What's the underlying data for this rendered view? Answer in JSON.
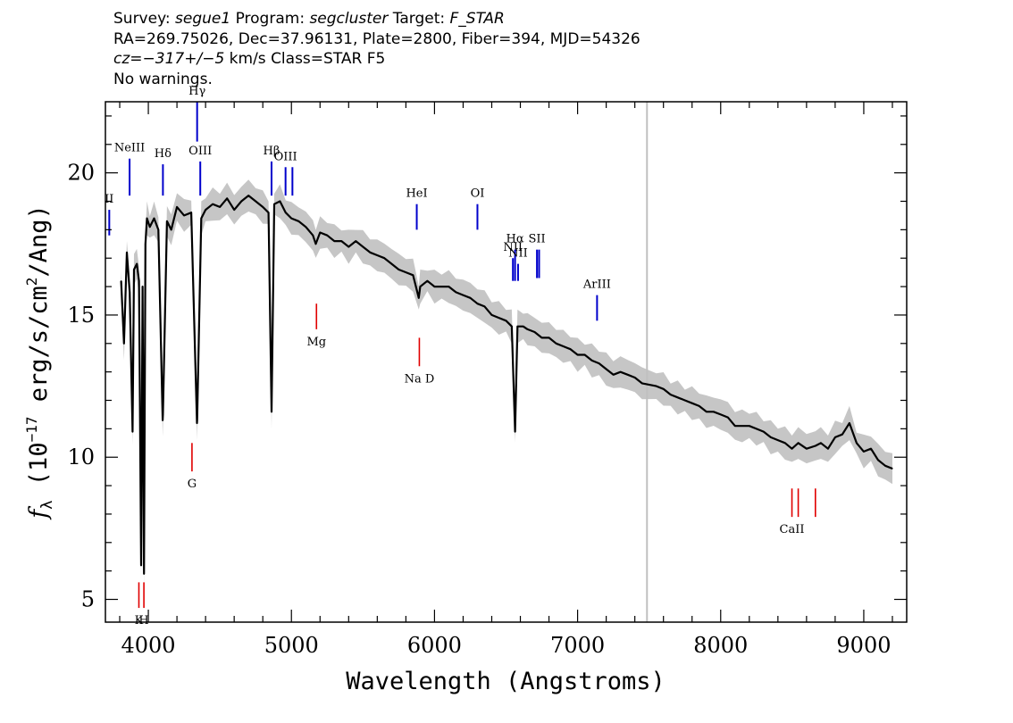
{
  "header": {
    "line1": {
      "survey_label": "Survey: ",
      "survey": "segue1",
      "program_label": " Program: ",
      "program": "segcluster",
      "target_label": " Target: ",
      "target": "F_STAR"
    },
    "line2": "RA=269.75026, Dec=37.96131, Plate=2800, Fiber=394, MJD=54326",
    "line3": {
      "cz": "cz",
      "eq": "=",
      "cz_value": "−317+/−5",
      "units": " km/s Class=STAR F5"
    },
    "line4": "No warnings."
  },
  "chart_data": {
    "type": "line",
    "xlabel": "Wavelength (Angstroms)",
    "ylabel": {
      "f": "f",
      "sub": "λ",
      "rest": " (10",
      "exp": "−17",
      "units": " erg/s/cm",
      "exp2": "2",
      "tail": "/Ang)"
    },
    "xlim": [
      3700,
      9300
    ],
    "ylim": [
      4.2,
      22.5
    ],
    "xticks": [
      4000,
      5000,
      6000,
      7000,
      8000,
      9000
    ],
    "yticks": [
      5,
      10,
      15,
      20
    ],
    "grid": false,
    "colors": {
      "flux": "#000000",
      "error": "#c0c0c0",
      "emission": "#0000cc",
      "absorption": "#e00000",
      "gap": "#c0c0c0"
    },
    "gap_x": 7485,
    "series": [
      {
        "values_note_skip": false,
        "x": [
          3810,
          3830,
          3850,
          3870,
          3890,
          3900,
          3920,
          3935,
          3950,
          3960,
          3970,
          3980,
          3990,
          4010,
          4040,
          4070,
          4100,
          4102,
          4130,
          4160,
          4200,
          4250,
          4300,
          4340,
          4341,
          4370,
          4400,
          4450,
          4500,
          4550,
          4600,
          4650,
          4700,
          4750,
          4800,
          4840,
          4861,
          4880,
          4920,
          4960,
          5000,
          5050,
          5100,
          5150,
          5170,
          5200,
          5250,
          5300,
          5350,
          5400,
          5450,
          5500,
          5550,
          5600,
          5650,
          5700,
          5750,
          5800,
          5850,
          5890,
          5900,
          5950,
          6000,
          6050,
          6100,
          6150,
          6200,
          6250,
          6300,
          6350,
          6400,
          6450,
          6500,
          6540,
          6563,
          6580,
          6620,
          6650,
          6700,
          6750,
          6800,
          6850,
          6900,
          6950,
          7000,
          7050,
          7100,
          7150,
          7200,
          7250,
          7300,
          7350,
          7400,
          7450,
          7550,
          7600,
          7650,
          7700,
          7750,
          7800,
          7850,
          7900,
          7950,
          8000,
          8050,
          8100,
          8150,
          8200,
          8250,
          8300,
          8350,
          8400,
          8450,
          8498,
          8542,
          8600,
          8662,
          8700,
          8750,
          8800,
          8850,
          8900,
          8950,
          9000,
          9050,
          9100,
          9150,
          9200
        ],
        "values": [
          16.2,
          14.0,
          17.2,
          15.8,
          10.9,
          16.6,
          16.8,
          16.2,
          6.2,
          16.0,
          5.9,
          17.5,
          18.4,
          18.1,
          18.4,
          18.0,
          11.3,
          11.5,
          18.3,
          18.0,
          18.8,
          18.5,
          18.6,
          11.2,
          11.3,
          18.4,
          18.7,
          18.9,
          18.8,
          19.1,
          18.7,
          19.0,
          19.2,
          19.0,
          18.8,
          18.6,
          11.6,
          18.9,
          19.0,
          18.6,
          18.4,
          18.3,
          18.1,
          17.8,
          17.5,
          17.9,
          17.8,
          17.6,
          17.6,
          17.4,
          17.6,
          17.4,
          17.2,
          17.1,
          17.0,
          16.8,
          16.6,
          16.5,
          16.4,
          15.6,
          16.0,
          16.2,
          16.0,
          16.0,
          16.0,
          15.8,
          15.7,
          15.6,
          15.4,
          15.3,
          15.0,
          14.9,
          14.8,
          14.6,
          10.9,
          14.6,
          14.6,
          14.5,
          14.4,
          14.2,
          14.2,
          14.0,
          13.9,
          13.8,
          13.6,
          13.6,
          13.4,
          13.3,
          13.1,
          12.9,
          13.0,
          12.9,
          12.8,
          12.6,
          12.5,
          12.4,
          12.2,
          12.1,
          12.0,
          11.9,
          11.8,
          11.6,
          11.6,
          11.5,
          11.4,
          11.1,
          11.1,
          11.1,
          11.0,
          10.9,
          10.7,
          10.6,
          10.5,
          10.3,
          10.5,
          10.3,
          10.4,
          10.5,
          10.3,
          10.7,
          10.8,
          11.2,
          10.5,
          10.2,
          10.3,
          9.9,
          9.7,
          9.6
        ]
      }
    ],
    "emission_lines": [
      {
        "label": "NeIII",
        "x": 3869,
        "y_bottom": 19.2,
        "y_top": 20.5
      },
      {
        "label": "Hδ",
        "x": 4102,
        "y_bottom": 19.2,
        "y_top": 20.3
      },
      {
        "label": "Hγ",
        "x": 4341,
        "y_bottom": 21.1,
        "y_top": 22.5
      },
      {
        "label": "OIII",
        "x": 4363,
        "y_bottom": 19.2,
        "y_top": 20.4
      },
      {
        "label": "Hβ",
        "x": 4861,
        "y_bottom": 19.2,
        "y_top": 20.4
      },
      {
        "label": "OIII",
        "x": 4959,
        "y_bottom": 19.2,
        "y_top": 20.2
      },
      {
        "label": "",
        "x": 5007,
        "y_bottom": 19.2,
        "y_top": 20.2
      },
      {
        "label": "HeI",
        "x": 5876,
        "y_bottom": 18.0,
        "y_top": 18.9
      },
      {
        "label": "OI",
        "x": 6300,
        "y_bottom": 18.0,
        "y_top": 18.9
      },
      {
        "label": "NII",
        "x": 6548,
        "y_bottom": 16.2,
        "y_top": 17.0
      },
      {
        "label": "Hα",
        "x": 6563,
        "y_bottom": 16.2,
        "y_top": 17.3
      },
      {
        "label": "NII",
        "x": 6584,
        "y_bottom": 16.2,
        "y_top": 16.8
      },
      {
        "label": "SII",
        "x": 6716,
        "y_bottom": 16.3,
        "y_top": 17.3
      },
      {
        "label": "",
        "x": 6731,
        "y_bottom": 16.3,
        "y_top": 17.3
      },
      {
        "label": "ArIII",
        "x": 7136,
        "y_bottom": 14.8,
        "y_top": 15.7
      },
      {
        "label": "II",
        "x": 3727,
        "y_bottom": 17.8,
        "y_top": 18.7
      }
    ],
    "absorption_lines": [
      {
        "label": "K",
        "x": 3934,
        "y_bottom": 4.7,
        "y_top": 5.6
      },
      {
        "label": "H",
        "x": 3969,
        "y_bottom": 4.7,
        "y_top": 5.6
      },
      {
        "label": "G",
        "x": 4305,
        "y_bottom": 9.5,
        "y_top": 10.5
      },
      {
        "label": "Mg",
        "x": 5175,
        "y_bottom": 14.5,
        "y_top": 15.4
      },
      {
        "label": "Na D",
        "x": 5894,
        "y_bottom": 13.2,
        "y_top": 14.2
      },
      {
        "label": "CaII",
        "x": 8498,
        "y_bottom": 7.9,
        "y_top": 8.9
      },
      {
        "label": "",
        "x": 8542,
        "y_bottom": 7.9,
        "y_top": 8.9
      },
      {
        "label": "",
        "x": 8662,
        "y_bottom": 7.9,
        "y_top": 8.9
      }
    ]
  }
}
